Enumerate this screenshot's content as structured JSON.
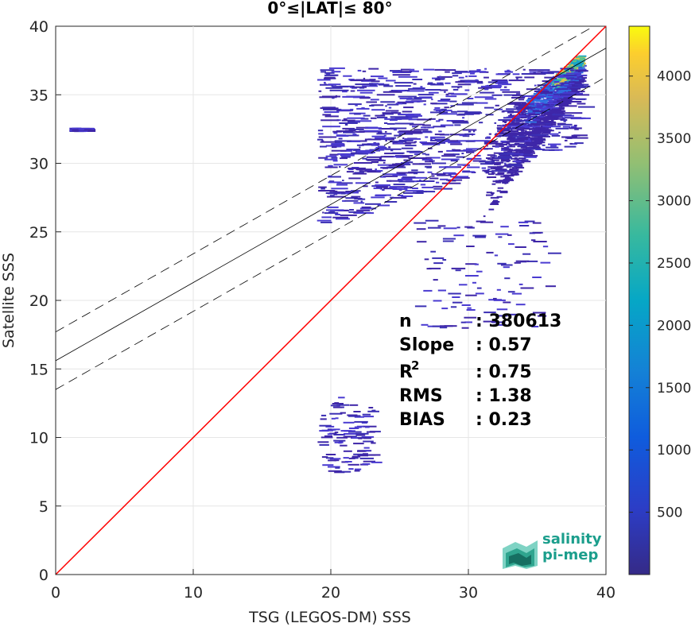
{
  "chart_data": {
    "type": "heatmap",
    "title": "0°≤|LAT|≤ 80°",
    "xlabel": "TSG (LEGOS-DM) SSS",
    "ylabel": "Satellite SSS",
    "xlim": [
      0,
      40
    ],
    "ylim": [
      0,
      40
    ],
    "x_ticks": [
      "0",
      "10",
      "20",
      "30",
      "40"
    ],
    "y_ticks": [
      "0",
      "5",
      "10",
      "15",
      "20",
      "25",
      "30",
      "35",
      "40"
    ],
    "grid": true,
    "colorbar": {
      "range": [
        0,
        4400
      ],
      "ticks": [
        "500",
        "1000",
        "1500",
        "2000",
        "2500",
        "3000",
        "3500",
        "4000"
      ],
      "tick_values": [
        500,
        1000,
        1500,
        2000,
        2500,
        3000,
        3500,
        4000
      ],
      "colormap": "parula"
    },
    "reference_lines": [
      {
        "kind": "identity",
        "color": "#ff0000",
        "x": [
          0,
          40
        ],
        "y": [
          0,
          40
        ]
      },
      {
        "kind": "regression-fit",
        "color": "#000000",
        "x": [
          0,
          40
        ],
        "y": [
          15.6,
          38.4
        ]
      },
      {
        "kind": "upper-bound",
        "color": "#000000",
        "style": "dashed",
        "x": [
          0,
          40
        ],
        "y": [
          17.7,
          40.5
        ]
      },
      {
        "kind": "lower-bound",
        "color": "#000000",
        "style": "dashed",
        "x": [
          0,
          40
        ],
        "y": [
          13.5,
          36.3
        ]
      }
    ],
    "stats": [
      {
        "label": "n",
        "sup": "",
        "value": ": 380613"
      },
      {
        "label": "Slope",
        "sup": "",
        "value": ": 0.57"
      },
      {
        "label": "R",
        "sup": "2",
        "value": ": 0.75"
      },
      {
        "label": "RMS",
        "sup": "",
        "value": ": 1.38"
      },
      {
        "label": "BIAS",
        "sup": "",
        "value": ": 0.23"
      }
    ],
    "density_clusters": [
      {
        "x": [
          31,
          38
        ],
        "y": [
          32,
          38
        ],
        "level": "high"
      },
      {
        "x": [
          19,
          38
        ],
        "y": [
          25,
          37
        ],
        "level": "low"
      },
      {
        "x": [
          26,
          36
        ],
        "y": [
          18,
          26
        ],
        "level": "sparse"
      },
      {
        "x": [
          19,
          23
        ],
        "y": [
          7.5,
          13
        ],
        "level": "sparse"
      },
      {
        "x": [
          1,
          2
        ],
        "y": [
          32.4,
          32.6
        ],
        "level": "sparse"
      }
    ]
  },
  "logo": {
    "line1": "salinity",
    "line2": "pi-mep"
  },
  "colors": {
    "identity_line": "#ff0000",
    "fit_line": "#000000",
    "scatter_base": "#3e26a8",
    "logo_text": "#1b9e8c"
  }
}
